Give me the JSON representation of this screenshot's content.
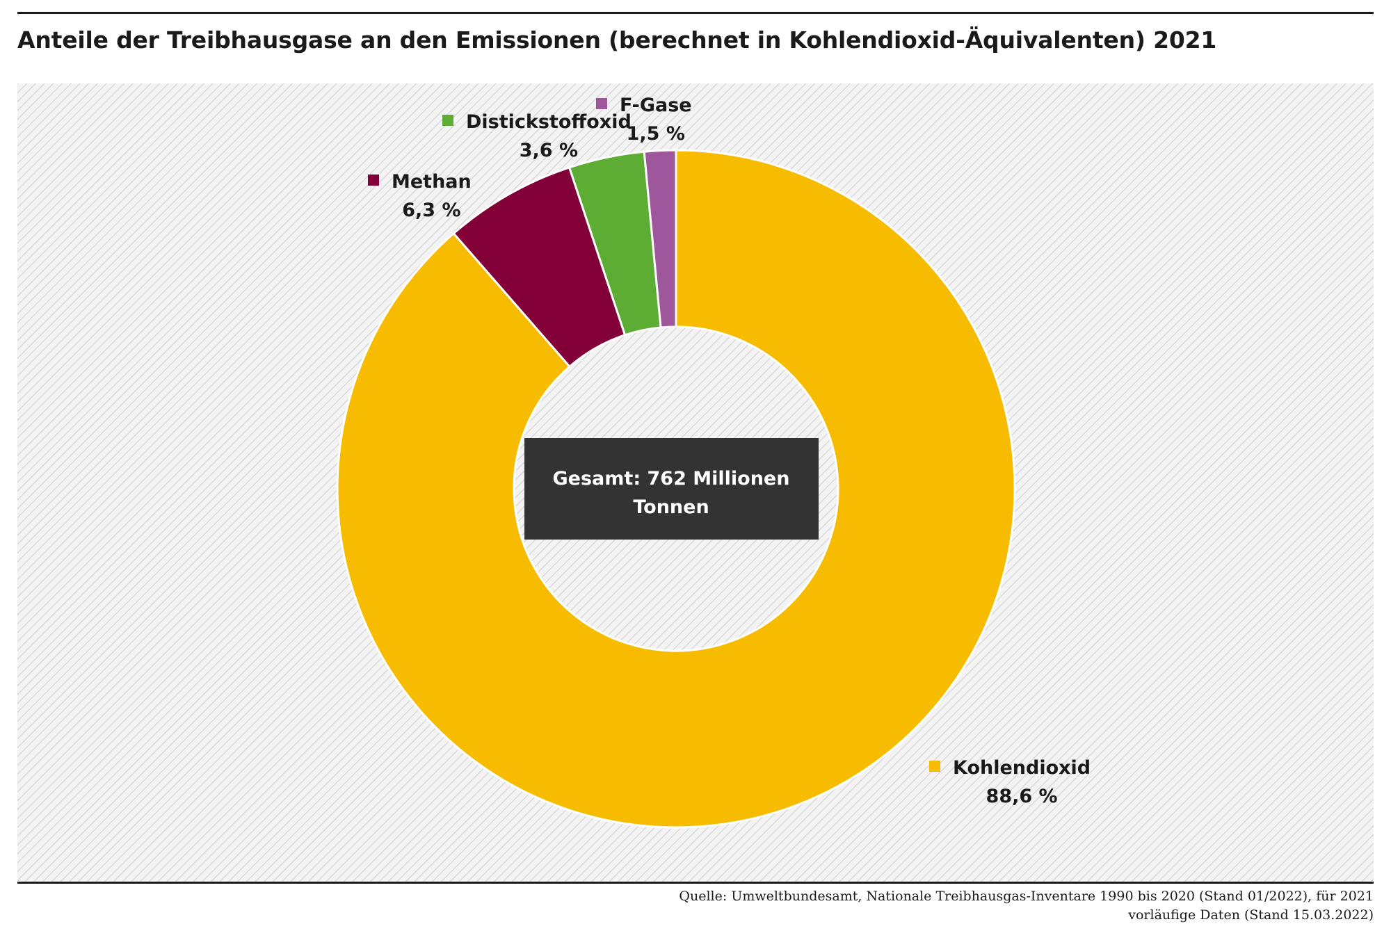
{
  "header": {
    "title": "Anteile der Treibhausgase an den Emissionen (berechnet in Kohlendioxid-Äquivalenten) 2021"
  },
  "chart_data": {
    "type": "pie",
    "variant": "donut",
    "title": "Anteile der Treibhausgase an den Emissionen (berechnet in Kohlendioxid-Äquivalenten) 2021",
    "total_label": "Gesamt: 762 Millionen Tonnen",
    "legend": "inline labels next to slices",
    "slices": [
      {
        "name": "Kohlendioxid",
        "value": 88.6,
        "label": "88,6 %",
        "color": "#f7bb00"
      },
      {
        "name": "Methan",
        "value": 6.3,
        "label": "6,3 %",
        "color": "#820037"
      },
      {
        "name": "Distickstoffoxid",
        "value": 3.6,
        "label": "3,6 %",
        "color": "#5dad35"
      },
      {
        "name": "F-Gase",
        "value": 1.5,
        "label": "1,5 %",
        "color": "#9d579a"
      }
    ]
  },
  "footer": {
    "source_line1": "Quelle: Umweltbundesamt, Nationale Treibhausgas-Inventare 1990 bis 2020 (Stand 01/2022), für 2021",
    "source_line2": "vorläufige Daten (Stand 15.03.2022)"
  }
}
